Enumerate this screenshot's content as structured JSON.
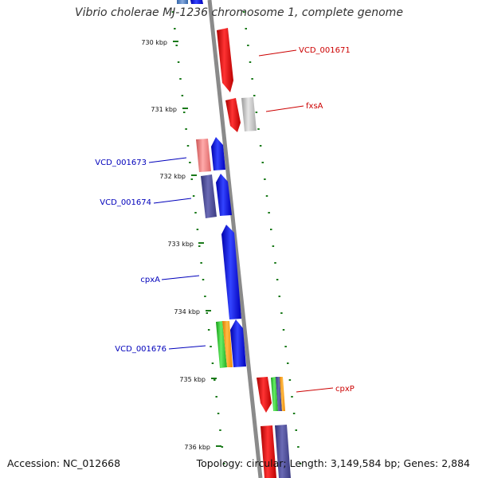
{
  "title": "Vibrio cholerae MJ-1236 chromosome 1, complete genome",
  "footer": {
    "accession": "Accession: NC_012668",
    "topology": "Topology: circular; Length: 3,149,584 bp; Genes: 2,884"
  },
  "ticks": [
    "730 kbp",
    "731 kbp",
    "732 kbp",
    "733 kbp",
    "734 kbp",
    "735 kbp",
    "736 kbp"
  ],
  "gene_labels": [
    {
      "name": "VCD_001671",
      "color": "#cc0000"
    },
    {
      "name": "fxsA",
      "color": "#cc0000"
    },
    {
      "name": "VCD_001673",
      "color": "#0000bb"
    },
    {
      "name": "VCD_001674",
      "color": "#0000bb"
    },
    {
      "name": "cpxA",
      "color": "#0000bb"
    },
    {
      "name": "VCD_001676",
      "color": "#0000bb"
    },
    {
      "name": "cpxP",
      "color": "#cc0000"
    }
  ],
  "colors": {
    "backbone": "#8a8a8a",
    "tick_marks": "#1a7a1a",
    "red": "#ee1111",
    "blue": "#1111ee",
    "navy": "#4a4a9a",
    "pink": "#ee8888",
    "grey": "#c8c8c8",
    "green": "#33cc33",
    "orange": "#ff9911"
  }
}
